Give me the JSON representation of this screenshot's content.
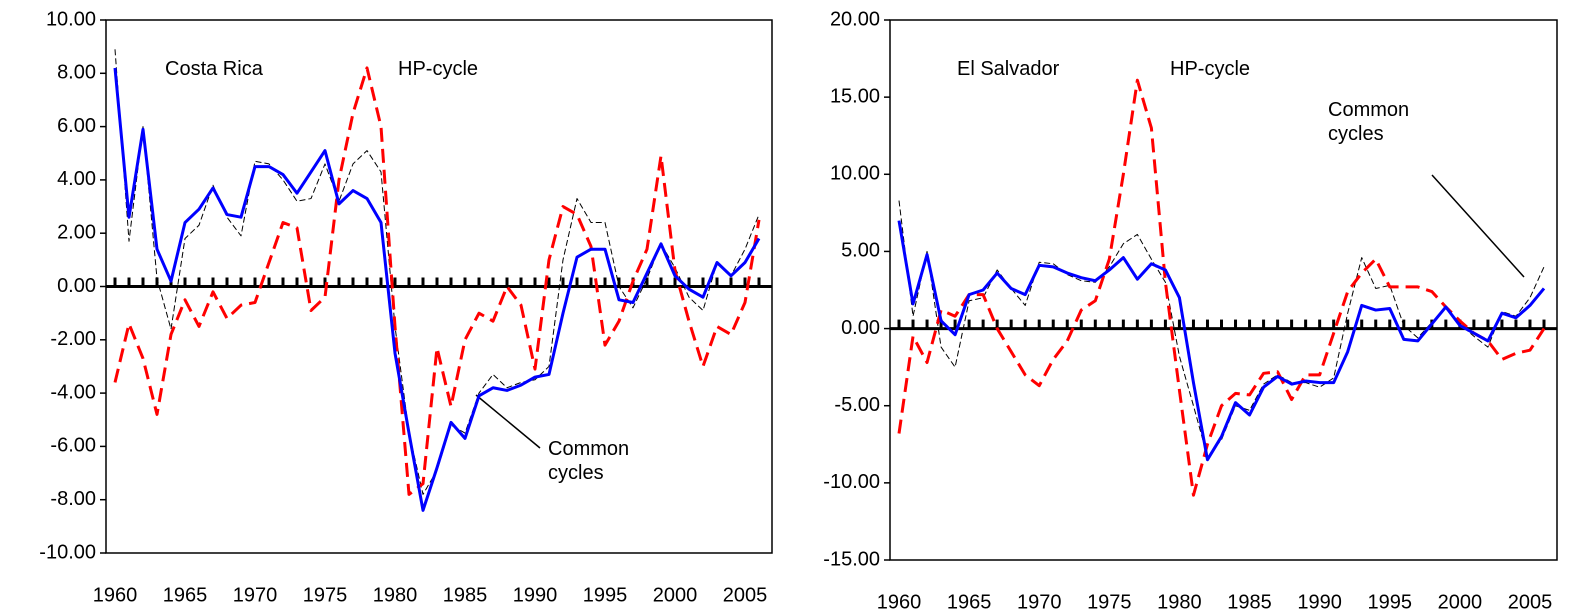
{
  "chart_data": [
    {
      "type": "line",
      "annotations": [
        "Costa Rica",
        "HP-cycle",
        "Common cycles"
      ],
      "x": [
        1960,
        1961,
        1962,
        1963,
        1964,
        1965,
        1966,
        1967,
        1968,
        1969,
        1970,
        1971,
        1972,
        1973,
        1974,
        1975,
        1976,
        1977,
        1978,
        1979,
        1980,
        1981,
        1982,
        1983,
        1984,
        1985,
        1986,
        1987,
        1988,
        1989,
        1990,
        1991,
        1992,
        1993,
        1994,
        1995,
        1996,
        1997,
        1998,
        1999,
        2000,
        2001,
        2002,
        2003,
        2004,
        2005,
        2006
      ],
      "xlim": [
        1960,
        2006
      ],
      "xticks": [
        1960,
        1965,
        1970,
        1975,
        1980,
        1985,
        1990,
        1995,
        2000,
        2005
      ],
      "ylim": [
        -10,
        10
      ],
      "yticks": [
        {
          "value": -10,
          "label": "-10.00"
        },
        {
          "value": -8,
          "label": "-8.00"
        },
        {
          "value": -6,
          "label": "-6.00"
        },
        {
          "value": -4,
          "label": "-4.00"
        },
        {
          "value": -2,
          "label": "-2.00"
        },
        {
          "value": 0,
          "label": "0.00"
        },
        {
          "value": 2,
          "label": "2.00"
        },
        {
          "value": 4,
          "label": "4.00"
        },
        {
          "value": 6,
          "label": "6.00"
        },
        {
          "value": 8,
          "label": "8.00"
        },
        {
          "value": 10,
          "label": "10.00"
        }
      ],
      "series": [
        {
          "color": "#000000",
          "line_style": "dashed",
          "weight": "thin",
          "values": [
            8.9,
            1.7,
            6.0,
            0.3,
            -1.6,
            1.8,
            2.3,
            3.8,
            2.6,
            1.9,
            4.7,
            4.6,
            4.0,
            3.2,
            3.3,
            4.6,
            3.2,
            4.6,
            5.1,
            4.3,
            -1.5,
            -5.5,
            -7.8,
            -6.9,
            -5.2,
            -5.5,
            -4.0,
            -3.3,
            -3.8,
            -3.6,
            -3.5,
            -3.0,
            1.0,
            3.3,
            2.4,
            2.4,
            0.0,
            -0.8,
            0.3,
            1.6,
            0.7,
            -0.4,
            -0.9,
            0.9,
            0.4,
            1.4,
            2.7
          ]
        },
        {
          "color": "#ff0000",
          "line_style": "dashed",
          "weight": "thick",
          "values": [
            -3.6,
            -1.4,
            -2.7,
            -4.8,
            -1.8,
            -0.5,
            -1.5,
            -0.2,
            -1.2,
            -0.7,
            -0.6,
            0.9,
            2.4,
            2.2,
            -0.9,
            -0.4,
            4.0,
            6.5,
            8.2,
            6.0,
            -1.5,
            -7.8,
            -7.4,
            -2.3,
            -4.5,
            -2.0,
            -1.0,
            -1.3,
            0.0,
            -0.7,
            -3.1,
            1.0,
            3.0,
            2.7,
            1.5,
            -2.2,
            -1.3,
            0.2,
            1.4,
            4.9,
            0.6,
            -1.3,
            -3.0,
            -1.5,
            -1.8,
            -0.6,
            2.5
          ]
        },
        {
          "color": "#0000ff",
          "line_style": "solid",
          "weight": "thick",
          "values": [
            8.2,
            2.6,
            5.9,
            1.4,
            0.2,
            2.4,
            2.9,
            3.7,
            2.7,
            2.6,
            4.5,
            4.5,
            4.2,
            3.5,
            4.3,
            5.1,
            3.1,
            3.6,
            3.3,
            2.4,
            -2.5,
            -5.5,
            -8.4,
            -6.8,
            -5.1,
            -5.7,
            -4.1,
            -3.8,
            -3.9,
            -3.7,
            -3.4,
            -3.3,
            -1.0,
            1.1,
            1.4,
            1.4,
            -0.5,
            -0.6,
            0.5,
            1.6,
            0.4,
            -0.1,
            -0.4,
            0.9,
            0.4,
            0.9,
            1.8
          ]
        }
      ]
    },
    {
      "type": "line",
      "annotations": [
        "El Salvador",
        "HP-cycle",
        "Common cycles"
      ],
      "x": [
        1960,
        1961,
        1962,
        1963,
        1964,
        1965,
        1966,
        1967,
        1968,
        1969,
        1970,
        1971,
        1972,
        1973,
        1974,
        1975,
        1976,
        1977,
        1978,
        1979,
        1980,
        1981,
        1982,
        1983,
        1984,
        1985,
        1986,
        1987,
        1988,
        1989,
        1990,
        1991,
        1992,
        1993,
        1994,
        1995,
        1996,
        1997,
        1998,
        1999,
        2000,
        2001,
        2002,
        2003,
        2004,
        2005,
        2006
      ],
      "xlim": [
        1960,
        2006
      ],
      "xticks": [
        1960,
        1965,
        1970,
        1975,
        1980,
        1985,
        1990,
        1995,
        2000,
        2005
      ],
      "ylim": [
        -15,
        20
      ],
      "yticks": [
        {
          "value": -15,
          "label": "-15.00"
        },
        {
          "value": -10,
          "label": "-10.00"
        },
        {
          "value": -5,
          "label": "-5.00"
        },
        {
          "value": 0,
          "label": "0.00"
        },
        {
          "value": 5,
          "label": "5.00"
        },
        {
          "value": 10,
          "label": "10.00"
        },
        {
          "value": 15,
          "label": "15.00"
        },
        {
          "value": 20,
          "label": "20.00"
        }
      ],
      "series": [
        {
          "color": "#000000",
          "line_style": "dashed",
          "weight": "thin",
          "values": [
            8.3,
            0.8,
            5.0,
            -1.2,
            -2.5,
            1.8,
            2.0,
            3.8,
            2.6,
            1.5,
            4.3,
            4.2,
            3.5,
            3.1,
            3.0,
            4.0,
            5.5,
            6.1,
            4.5,
            3.0,
            -1.8,
            -5.0,
            -8.3,
            -7.2,
            -5.0,
            -5.3,
            -3.6,
            -3.0,
            -3.5,
            -3.5,
            -3.8,
            -3.2,
            1.0,
            4.6,
            2.6,
            2.8,
            0.2,
            -0.6,
            0.4,
            1.3,
            0.3,
            -0.5,
            -1.2,
            1.1,
            0.8,
            2.0,
            4.0
          ]
        },
        {
          "color": "#ff0000",
          "line_style": "dashed",
          "weight": "thick",
          "values": [
            -6.8,
            -0.5,
            -2.2,
            1.2,
            0.8,
            2.2,
            2.2,
            0.0,
            -1.5,
            -3.0,
            -3.7,
            -2.0,
            -0.8,
            1.2,
            1.8,
            4.5,
            10.0,
            16.1,
            13.0,
            3.0,
            -4.0,
            -10.8,
            -7.5,
            -5.0,
            -4.2,
            -4.3,
            -2.9,
            -2.8,
            -4.6,
            -3.0,
            -3.0,
            -0.3,
            2.4,
            3.6,
            4.5,
            2.7,
            2.7,
            2.7,
            2.4,
            1.4,
            0.5,
            -0.3,
            -0.8,
            -2.0,
            -1.6,
            -1.4,
            0.0
          ]
        },
        {
          "color": "#0000ff",
          "line_style": "solid",
          "weight": "thick",
          "values": [
            7.0,
            1.6,
            4.8,
            0.5,
            -0.4,
            2.2,
            2.5,
            3.6,
            2.6,
            2.2,
            4.1,
            4.0,
            3.6,
            3.3,
            3.1,
            3.8,
            4.6,
            3.2,
            4.2,
            3.8,
            2.0,
            -3.5,
            -8.5,
            -7.0,
            -4.8,
            -5.6,
            -3.8,
            -3.1,
            -3.6,
            -3.4,
            -3.5,
            -3.5,
            -1.5,
            1.5,
            1.2,
            1.3,
            -0.7,
            -0.8,
            0.3,
            1.4,
            0.2,
            -0.3,
            -0.8,
            1.0,
            0.7,
            1.5,
            2.6
          ]
        }
      ]
    }
  ]
}
